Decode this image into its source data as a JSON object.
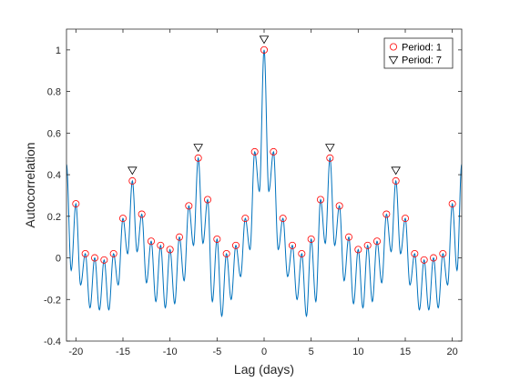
{
  "chart_data": {
    "type": "line",
    "title": "",
    "xlabel": "Lag (days)",
    "ylabel": "Autocorrelation",
    "xlim": [
      -21,
      21
    ],
    "ylim": [
      -0.4,
      1.1
    ],
    "xticks": [
      -20,
      -15,
      -10,
      -5,
      0,
      5,
      10,
      15,
      20
    ],
    "xtick_labels": [
      "-20",
      "-15",
      "-10",
      "-5",
      "0",
      "5",
      "10",
      "15",
      "20"
    ],
    "yticks": [
      -0.4,
      -0.2,
      0,
      0.2,
      0.4,
      0.6,
      0.8,
      1
    ],
    "ytick_labels": [
      "-0.4",
      "-0.2",
      "0",
      "0.2",
      "0.4",
      "0.6",
      "0.8",
      "1"
    ],
    "grid": false,
    "legend_position": "top-right",
    "colors": {
      "line": "#0072BD",
      "period1": "#FF0000",
      "period7": "#000000",
      "axes": "#262626"
    },
    "series": [
      {
        "name": "",
        "kind": "line",
        "minima": [
          {
            "x": -20.5,
            "y": -0.06
          },
          {
            "x": -19.5,
            "y": -0.13
          },
          {
            "x": -18.5,
            "y": -0.24
          },
          {
            "x": -17.5,
            "y": -0.25
          },
          {
            "x": -16.5,
            "y": -0.25
          },
          {
            "x": -15.5,
            "y": -0.13
          },
          {
            "x": -14.5,
            "y": 0.02
          },
          {
            "x": -13.5,
            "y": 0.03
          },
          {
            "x": -12.5,
            "y": -0.12
          },
          {
            "x": -11.5,
            "y": -0.21
          },
          {
            "x": -10.5,
            "y": -0.24
          },
          {
            "x": -9.5,
            "y": -0.22
          },
          {
            "x": -8.5,
            "y": -0.11
          },
          {
            "x": -7.5,
            "y": 0.06
          },
          {
            "x": -6.5,
            "y": 0.07
          },
          {
            "x": -5.5,
            "y": -0.21
          },
          {
            "x": -4.5,
            "y": -0.28
          },
          {
            "x": -3.5,
            "y": -0.2
          },
          {
            "x": -2.5,
            "y": -0.09
          },
          {
            "x": -1.5,
            "y": 0.04
          },
          {
            "x": -0.5,
            "y": 0.32
          },
          {
            "x": 0.5,
            "y": 0.32
          },
          {
            "x": 1.5,
            "y": 0.04
          },
          {
            "x": 2.5,
            "y": -0.09
          },
          {
            "x": 3.5,
            "y": -0.2
          },
          {
            "x": 4.5,
            "y": -0.28
          },
          {
            "x": 5.5,
            "y": -0.21
          },
          {
            "x": 6.5,
            "y": 0.07
          },
          {
            "x": 7.5,
            "y": 0.06
          },
          {
            "x": 8.5,
            "y": -0.11
          },
          {
            "x": 9.5,
            "y": -0.22
          },
          {
            "x": 10.5,
            "y": -0.24
          },
          {
            "x": 11.5,
            "y": -0.21
          },
          {
            "x": 12.5,
            "y": -0.12
          },
          {
            "x": 13.5,
            "y": 0.03
          },
          {
            "x": 14.5,
            "y": 0.02
          },
          {
            "x": 15.5,
            "y": -0.13
          },
          {
            "x": 16.5,
            "y": -0.25
          },
          {
            "x": 17.5,
            "y": -0.25
          },
          {
            "x": 18.5,
            "y": -0.24
          },
          {
            "x": 19.5,
            "y": -0.13
          },
          {
            "x": 20.5,
            "y": -0.06
          }
        ],
        "end_values": {
          "x_min": -21,
          "y_at_x_min": 0.45,
          "x_max": 21,
          "y_at_x_max": 0.45
        }
      },
      {
        "name": "Period: 1",
        "kind": "circle-markers",
        "points": [
          {
            "x": -20,
            "y": 0.26
          },
          {
            "x": -19,
            "y": 0.02
          },
          {
            "x": -18,
            "y": 0.0
          },
          {
            "x": -17,
            "y": -0.01
          },
          {
            "x": -16,
            "y": 0.02
          },
          {
            "x": -15,
            "y": 0.19
          },
          {
            "x": -14,
            "y": 0.37
          },
          {
            "x": -13,
            "y": 0.21
          },
          {
            "x": -12,
            "y": 0.08
          },
          {
            "x": -11,
            "y": 0.06
          },
          {
            "x": -10,
            "y": 0.04
          },
          {
            "x": -9,
            "y": 0.1
          },
          {
            "x": -8,
            "y": 0.25
          },
          {
            "x": -7,
            "y": 0.48
          },
          {
            "x": -6,
            "y": 0.28
          },
          {
            "x": -5,
            "y": 0.09
          },
          {
            "x": -4,
            "y": 0.02
          },
          {
            "x": -3,
            "y": 0.06
          },
          {
            "x": -2,
            "y": 0.19
          },
          {
            "x": -1,
            "y": 0.51
          },
          {
            "x": 0,
            "y": 1.0
          },
          {
            "x": 1,
            "y": 0.51
          },
          {
            "x": 2,
            "y": 0.19
          },
          {
            "x": 3,
            "y": 0.06
          },
          {
            "x": 4,
            "y": 0.02
          },
          {
            "x": 5,
            "y": 0.09
          },
          {
            "x": 6,
            "y": 0.28
          },
          {
            "x": 7,
            "y": 0.48
          },
          {
            "x": 8,
            "y": 0.25
          },
          {
            "x": 9,
            "y": 0.1
          },
          {
            "x": 10,
            "y": 0.04
          },
          {
            "x": 11,
            "y": 0.06
          },
          {
            "x": 12,
            "y": 0.08
          },
          {
            "x": 13,
            "y": 0.21
          },
          {
            "x": 14,
            "y": 0.37
          },
          {
            "x": 15,
            "y": 0.19
          },
          {
            "x": 16,
            "y": 0.02
          },
          {
            "x": 17,
            "y": -0.01
          },
          {
            "x": 18,
            "y": 0.0
          },
          {
            "x": 19,
            "y": 0.02
          },
          {
            "x": 20,
            "y": 0.26
          }
        ]
      },
      {
        "name": "Period: 7",
        "kind": "triangle-markers",
        "points": [
          {
            "x": -14,
            "y": 0.42
          },
          {
            "x": -7,
            "y": 0.53
          },
          {
            "x": 0,
            "y": 1.05
          },
          {
            "x": 7,
            "y": 0.53
          },
          {
            "x": 14,
            "y": 0.42
          }
        ]
      }
    ]
  }
}
